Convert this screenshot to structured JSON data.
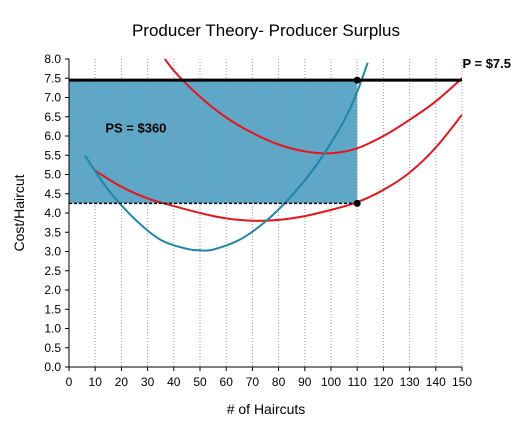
{
  "chart_data": {
    "type": "line",
    "title": "Producer Theory- Producer Surplus",
    "xlabel": "# of Haircuts",
    "ylabel": "Cost/Haircut",
    "xlim": [
      0,
      150
    ],
    "ylim": [
      0,
      8
    ],
    "x_ticks": [
      "0",
      "10",
      "20",
      "30",
      "40",
      "50",
      "60",
      "70",
      "80",
      "90",
      "100",
      "110",
      "120",
      "130",
      "140",
      "150"
    ],
    "y_ticks": [
      "0.0",
      "0.5",
      "1.0",
      "1.5",
      "2.0",
      "2.5",
      "3.0",
      "3.5",
      "4.0",
      "4.5",
      "5.0",
      "5.5",
      "6.0",
      "6.5",
      "7.0",
      "7.5",
      "8.0"
    ],
    "grid": "vertical-dotted",
    "series": [
      {
        "color": "#e8141e",
        "points": [
          [
            10,
            5.1
          ],
          [
            20,
            4.68
          ],
          [
            30,
            4.38
          ],
          [
            40,
            4.18
          ],
          [
            50,
            4.0
          ],
          [
            60,
            3.86
          ],
          [
            70,
            3.8
          ],
          [
            80,
            3.82
          ],
          [
            90,
            3.92
          ],
          [
            100,
            4.08
          ],
          [
            110,
            4.28
          ],
          [
            120,
            4.6
          ],
          [
            130,
            5.05
          ],
          [
            140,
            5.7
          ],
          [
            150,
            6.55
          ]
        ]
      },
      {
        "color": "#e8141e",
        "points": [
          [
            32,
            8.45
          ],
          [
            40,
            7.7
          ],
          [
            50,
            7.02
          ],
          [
            60,
            6.48
          ],
          [
            70,
            6.08
          ],
          [
            80,
            5.78
          ],
          [
            90,
            5.6
          ],
          [
            100,
            5.55
          ],
          [
            110,
            5.68
          ],
          [
            120,
            6.0
          ],
          [
            130,
            6.42
          ],
          [
            140,
            6.9
          ],
          [
            150,
            7.5
          ]
        ]
      },
      {
        "color": "#1e86a8",
        "points": [
          [
            6,
            5.5
          ],
          [
            15,
            4.6
          ],
          [
            25,
            3.85
          ],
          [
            35,
            3.3
          ],
          [
            45,
            3.07
          ],
          [
            50,
            3.03
          ],
          [
            55,
            3.05
          ],
          [
            65,
            3.3
          ],
          [
            75,
            3.78
          ],
          [
            85,
            4.45
          ],
          [
            95,
            5.3
          ],
          [
            105,
            6.4
          ],
          [
            110,
            7.15
          ],
          [
            114,
            7.9
          ]
        ]
      }
    ],
    "price_line": {
      "y": 7.45,
      "color": "#000000"
    },
    "cost_line": {
      "y": 4.25,
      "x_end": 110,
      "style": "dashed"
    },
    "shaded_region": {
      "x": [
        0,
        110
      ],
      "y": [
        4.25,
        7.45
      ],
      "color": "#5ea7c6"
    },
    "markers": [
      {
        "x": 110,
        "y": 7.45
      },
      {
        "x": 110,
        "y": 4.25
      }
    ],
    "annotations": [
      {
        "text": "P = $7.5",
        "x": 150,
        "y": 7.45,
        "anchor": "above-right"
      },
      {
        "text": "PS = $360",
        "x": 7,
        "y": 6.2,
        "anchor": "inside"
      }
    ]
  }
}
